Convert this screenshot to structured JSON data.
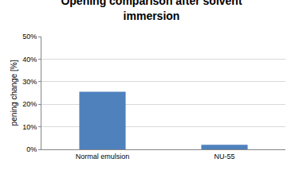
{
  "chart_data": {
    "type": "bar",
    "title": "Opening comparison after solvent immersion",
    "y_label": "pening change [%]",
    "categories": [
      "Normal emulsion",
      "NU-55"
    ],
    "values": [
      25.5,
      2
    ],
    "color": "#4f81bd",
    "ylim": [
      0,
      50
    ],
    "yticks": [
      {
        "value": 0,
        "label": "0%"
      },
      {
        "value": 10,
        "label": "10%"
      },
      {
        "value": 20,
        "label": "20%"
      },
      {
        "value": 30,
        "label": "30%"
      },
      {
        "value": 40,
        "label": "40%"
      },
      {
        "value": 50,
        "label": "50%"
      }
    ],
    "grid": true
  }
}
